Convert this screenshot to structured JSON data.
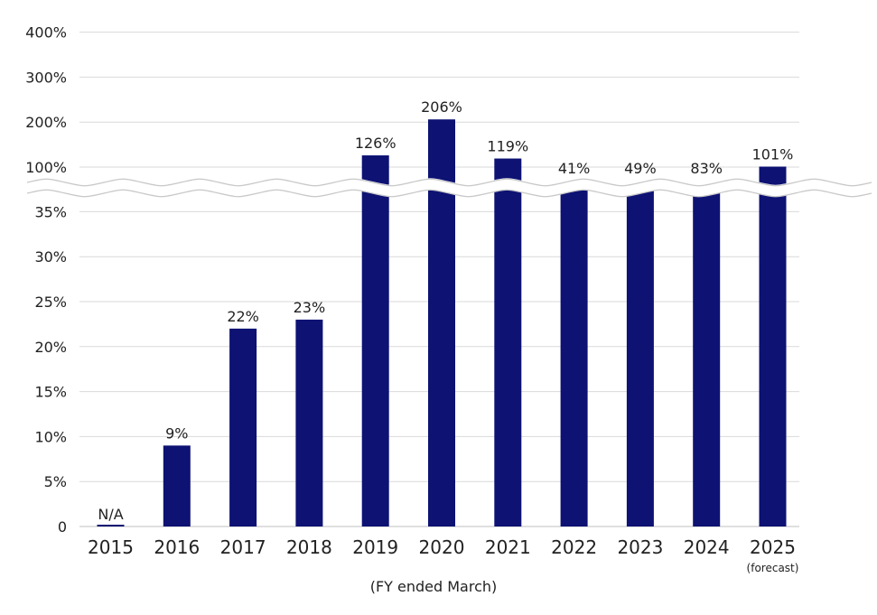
{
  "chart_data": {
    "type": "bar",
    "categories": [
      "2015",
      "2016",
      "2017",
      "2018",
      "2019",
      "2020",
      "2021",
      "2022",
      "2023",
      "2024",
      "2025"
    ],
    "values": [
      null,
      9,
      22,
      23,
      126,
      206,
      119,
      41,
      49,
      83,
      101
    ],
    "data_labels": [
      "N/A",
      "9%",
      "22%",
      "23%",
      "126%",
      "206%",
      "119%",
      "41%",
      "49%",
      "83%",
      "101%"
    ],
    "category_notes": [
      "",
      "",
      "",
      "",
      "",
      "",
      "",
      "",
      "",
      "",
      "(forecast)"
    ],
    "xlabel": "(FY ended March)",
    "ylabel": "",
    "axis_break": {
      "lower_range": [
        0,
        35
      ],
      "upper_range": [
        100,
        400
      ]
    },
    "yticks_lower": [
      "0",
      "5%",
      "10%",
      "15%",
      "20%",
      "25%",
      "30%",
      "35%"
    ],
    "yticks_upper": [
      "100%",
      "200%",
      "300%",
      "400%"
    ],
    "grid": true,
    "bar_color": "#0d1273"
  }
}
